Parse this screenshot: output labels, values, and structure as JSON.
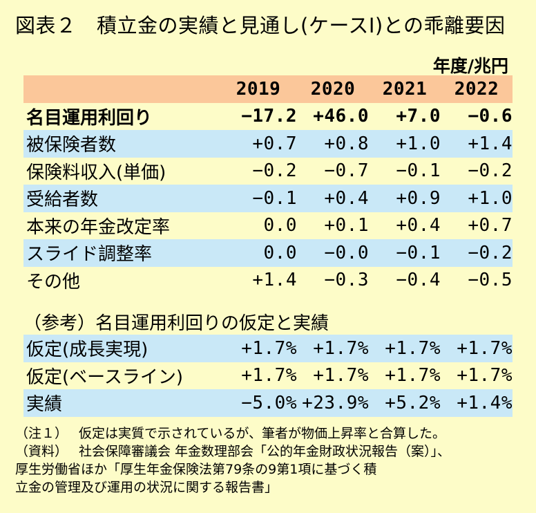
{
  "title": "図表２　積立金の実績と見通し(ケースⅠ)との乖離要因",
  "unit": "年度/兆円",
  "years": [
    "2019",
    "2020",
    "2021",
    "2022"
  ],
  "main_rows": [
    {
      "label": "名目運用利回り",
      "values": [
        "−17.2",
        "+46.0",
        "+7.0",
        "−0.6"
      ]
    },
    {
      "label": "被保険者数",
      "values": [
        "+0.7",
        "+0.8",
        "+1.0",
        "+1.4"
      ]
    },
    {
      "label": "保険料収入(単価)",
      "values": [
        "−0.2",
        "−0.7",
        "−0.1",
        "−0.2"
      ]
    },
    {
      "label": "受給者数",
      "values": [
        "−0.1",
        "+0.4",
        "+0.9",
        "+1.0"
      ]
    },
    {
      "label": "本来の年金改定率",
      "values": [
        "0.0",
        "+0.1",
        "+0.4",
        "+0.7"
      ]
    },
    {
      "label": "スライド調整率",
      "values": [
        "0.0",
        "−0.0",
        "−0.1",
        "−0.2"
      ]
    },
    {
      "label": "その他",
      "values": [
        "+1.4",
        "−0.3",
        "−0.4",
        "−0.5"
      ]
    }
  ],
  "reference_title": "（参考）名目運用利回りの仮定と実績",
  "reference_rows": [
    {
      "label": "仮定(成長実現)",
      "values": [
        "+1.7%",
        "+1.7%",
        "+1.7%",
        "+1.7%"
      ]
    },
    {
      "label": "仮定(ベースライン)",
      "values": [
        "+1.7%",
        "+1.7%",
        "+1.7%",
        "+1.7%"
      ]
    },
    {
      "label": "実績",
      "values": [
        "−5.0%",
        "+23.9%",
        "+5.2%",
        "+1.4%"
      ]
    }
  ],
  "notes": [
    {
      "tag": "（注１）",
      "lines": [
        "仮定は実質で示されているが、筆者が物価上昇率と合算した。"
      ]
    },
    {
      "tag": "（資料）",
      "lines": [
        "社会保障審議会 年金数理部会「公的年金財政状況報告（案）」、",
        "厚生労働省ほか「厚生年金保険法第79条の9第1項に基づく積",
        "立金の管理及び運用の状況に関する報告書」"
      ]
    }
  ],
  "colors": {
    "background": "#fdfcc8",
    "header": "#fbc79a",
    "stripe": "#c9e8f7"
  }
}
